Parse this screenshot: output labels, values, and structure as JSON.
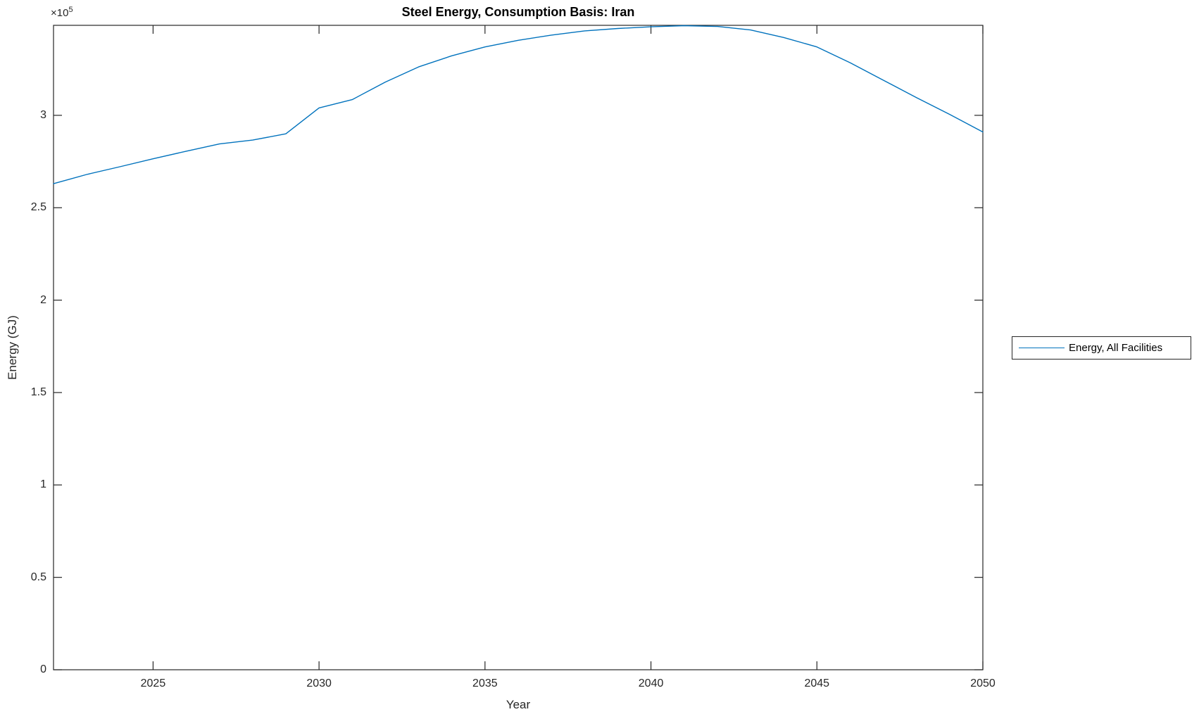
{
  "colors": {
    "line": "#0072BD",
    "axis": "#262626",
    "title": "#000000",
    "background": "#ffffff"
  },
  "y_offset": {
    "base": "×10",
    "exp": "5"
  },
  "chart_data": {
    "type": "line",
    "title": "Steel Energy, Consumption Basis: Iran",
    "xlabel": "Year",
    "ylabel": "Energy (GJ)",
    "grid": false,
    "xlim": [
      2022,
      2050
    ],
    "ylim": [
      0,
      348700
    ],
    "xticks": [
      2025,
      2030,
      2035,
      2040,
      2045,
      2050
    ],
    "xticklabels": [
      "2025",
      "2030",
      "2035",
      "2040",
      "2045",
      "2050"
    ],
    "yticks": [
      0,
      50000,
      100000,
      150000,
      200000,
      250000,
      300000
    ],
    "yticklabels": [
      "0",
      "0.5",
      "1",
      "1.5",
      "2",
      "2.5",
      "3"
    ],
    "y_axis_multiplier": "1e5",
    "legend": {
      "position": "outside-right",
      "entries": [
        {
          "label": "Energy, All Facilities",
          "color": "#0072BD"
        }
      ]
    },
    "series": [
      {
        "name": "Energy, All Facilities",
        "color": "#0072BD",
        "x": [
          2022,
          2023,
          2024,
          2025,
          2026,
          2027,
          2028,
          2029,
          2030,
          2031,
          2032,
          2033,
          2034,
          2035,
          2036,
          2037,
          2038,
          2039,
          2040,
          2041,
          2042,
          2043,
          2044,
          2045,
          2046,
          2047,
          2048,
          2049,
          2050
        ],
        "values": [
          263000,
          268000,
          272200,
          276500,
          280600,
          284500,
          286600,
          290000,
          304000,
          308500,
          318000,
          326200,
          332200,
          337000,
          340600,
          343400,
          345700,
          347000,
          347900,
          348500,
          348100,
          346200,
          342100,
          337000,
          328500,
          319000,
          309600,
          300500,
          291000
        ]
      }
    ]
  }
}
